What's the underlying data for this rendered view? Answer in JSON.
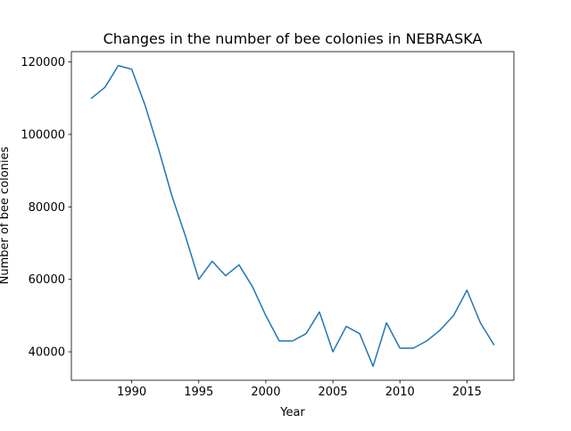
{
  "chart_data": {
    "type": "line",
    "title": "Changes in the number of bee colonies in NEBRASKA",
    "xlabel": "Year",
    "ylabel": "Number of bee colonies",
    "xlim": [
      1985.5,
      2018.5
    ],
    "ylim": [
      32150,
      122850
    ],
    "x_ticks": [
      1990,
      1995,
      2000,
      2005,
      2010,
      2015
    ],
    "y_ticks": [
      40000,
      60000,
      80000,
      100000,
      120000
    ],
    "grid": false,
    "legend": "none",
    "series": [
      {
        "color": "#1f77b4",
        "x": [
          1987,
          1988,
          1989,
          1990,
          1991,
          1992,
          1993,
          1994,
          1995,
          1996,
          1997,
          1998,
          1999,
          2000,
          2001,
          2002,
          2003,
          2004,
          2005,
          2006,
          2007,
          2008,
          2009,
          2010,
          2011,
          2012,
          2013,
          2014,
          2015,
          2016,
          2017
        ],
        "values": [
          110000,
          113000,
          119000,
          118000,
          108000,
          96000,
          83000,
          72000,
          60000,
          65000,
          61000,
          64000,
          58000,
          50000,
          43000,
          43000,
          45000,
          51000,
          40000,
          47000,
          45000,
          36000,
          48000,
          41000,
          41000,
          43000,
          46000,
          50000,
          57000,
          48000,
          42000
        ]
      }
    ]
  }
}
